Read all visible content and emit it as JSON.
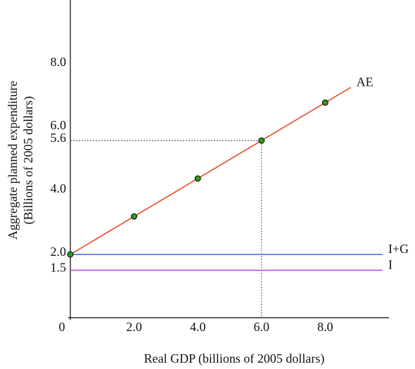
{
  "chart_data": {
    "type": "line",
    "x_label": "Real GDP (billions of 2005 dollars)",
    "y_label": [
      "Aggregate planned expenditure",
      "(Billions of 2005 dollars)"
    ],
    "xlim": [
      0,
      10
    ],
    "ylim": [
      0,
      10
    ],
    "xticks": [
      0,
      {
        "value": 2,
        "label": "2.0"
      },
      {
        "value": 4,
        "label": "4.0"
      },
      {
        "value": 6,
        "label": "6.0"
      },
      {
        "value": 8,
        "label": "8.0"
      }
    ],
    "yticks": [
      {
        "value": 1.5,
        "label": "1.5"
      },
      {
        "value": 2,
        "label": "2.0"
      },
      {
        "value": 4,
        "label": "4.0"
      },
      {
        "value": 5.6,
        "label": "5.6"
      },
      {
        "value": 6,
        "label": "6.0"
      },
      {
        "value": 8,
        "label": "8.0"
      }
    ],
    "grid": false,
    "series": [
      {
        "name": "AE",
        "color": "#e8401c",
        "x": [
          0,
          8.8
        ],
        "values": [
          2,
          7.28
        ]
      },
      {
        "name": "I+G",
        "color": "#3a6fd8",
        "x": [
          0,
          9.8
        ],
        "values": [
          2,
          2
        ]
      },
      {
        "name": "I",
        "color": "#c040e0",
        "x": [
          0,
          9.8
        ],
        "values": [
          1.5,
          1.5
        ]
      }
    ],
    "points": {
      "color": "#2e9a1e",
      "x": [
        0,
        2,
        4,
        6,
        8
      ],
      "values": [
        2,
        3.2,
        4.4,
        5.6,
        6.8
      ]
    },
    "guides": [
      {
        "x": 6,
        "y": 5.6
      }
    ]
  }
}
